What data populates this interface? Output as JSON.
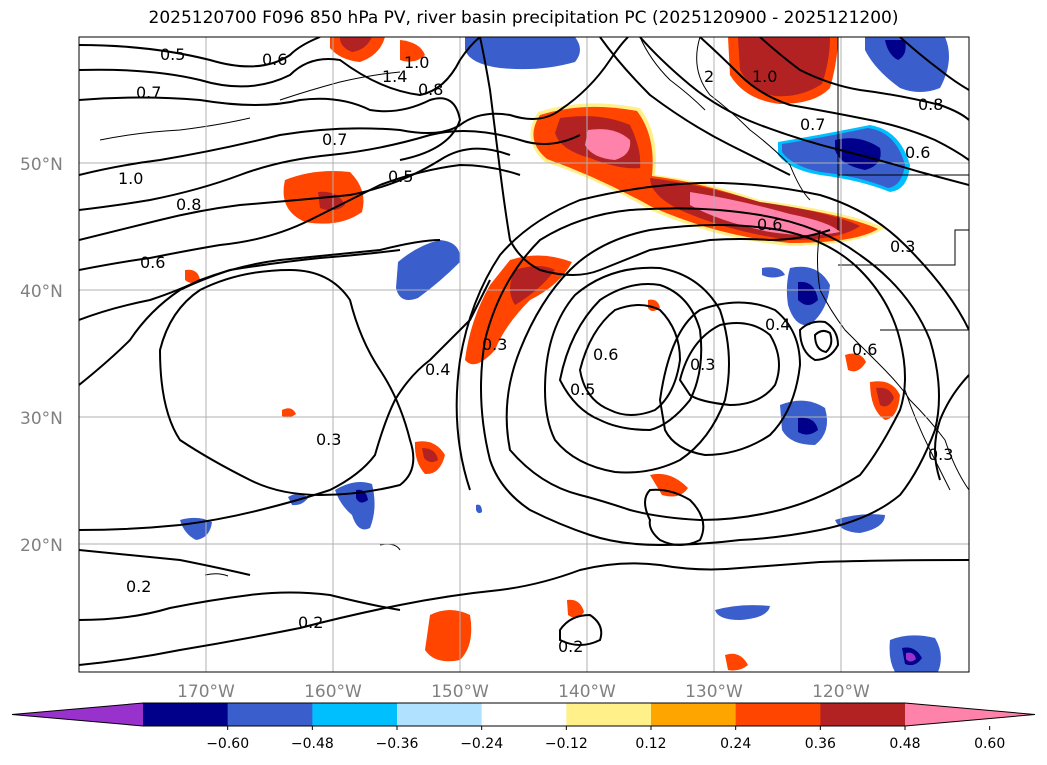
{
  "title": "2025120700 F096 850 hPa PV, river basin precipitation PC (2025120900 - 2025121200)",
  "map": {
    "lon_range": [
      -180,
      -110
    ],
    "lat_range": [
      10,
      60
    ],
    "lat_labels": [
      "50°N",
      "40°N",
      "30°N",
      "20°N"
    ],
    "lon_labels": [
      "170°W",
      "160°W",
      "150°W",
      "140°W",
      "130°W",
      "120°W"
    ],
    "contour_labels": [
      "0.5",
      "0.6",
      "0.7",
      "1.4",
      "1.0",
      "0.8",
      "0.7",
      "1.0",
      "0.8",
      "0.6",
      "0.5",
      "0.7",
      "1.0",
      "0.8",
      "0.6",
      "0.6",
      "0.3",
      "0.3",
      "0.4",
      "0.4",
      "0.6",
      "0.5",
      "0.3",
      "0.3",
      "0.6",
      "0.3",
      "0.2",
      "0.2",
      "0.2",
      "2"
    ]
  },
  "colorbar": {
    "colors": [
      "#9932cc",
      "#00008b",
      "#3a5fcd",
      "#00bfff",
      "#b0e2ff",
      "#ffffff",
      "#fff08a",
      "#ffa500",
      "#ff4500",
      "#b22222",
      "#ff82ab"
    ],
    "ticks": [
      "−0.60",
      "−0.48",
      "−0.36",
      "−0.24",
      "−0.12",
      "0.12",
      "0.24",
      "0.36",
      "0.48",
      "0.60"
    ]
  }
}
